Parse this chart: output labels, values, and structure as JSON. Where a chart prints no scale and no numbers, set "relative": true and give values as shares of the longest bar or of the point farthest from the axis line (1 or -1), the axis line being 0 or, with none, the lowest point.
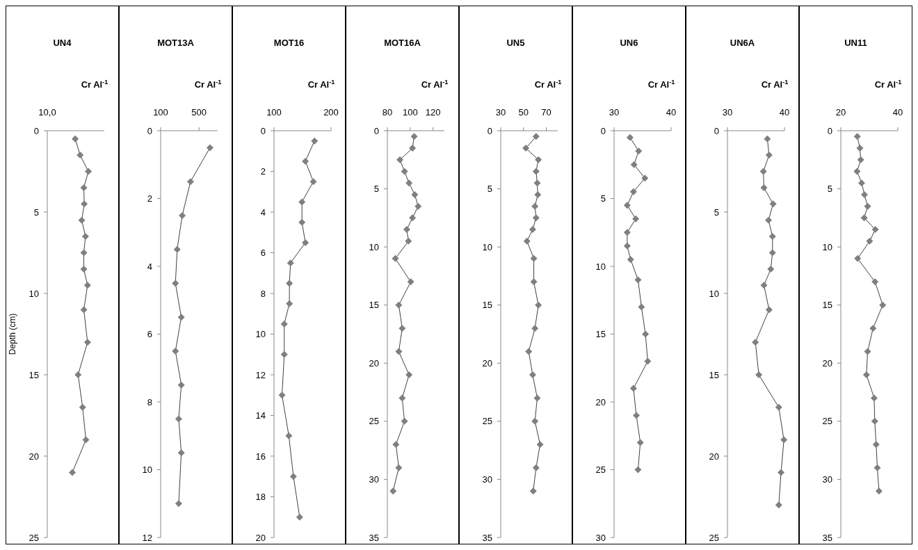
{
  "chart_data": [
    {
      "type": "line",
      "orientation": "horizontal",
      "title": "UN4",
      "xlabel": "Cr Al$^{-1}$",
      "ylabel": "Depth (cm)",
      "relative": true,
      "marker": "diamond",
      "annotations": [
        "10,0"
      ],
      "ylim": [
        25,
        0
      ],
      "yticks": [
        0,
        5,
        10,
        15,
        20,
        25
      ],
      "series": [
        {
          "color": "#7f7f7f",
          "values": [
            0.68,
            0.8,
            1.0,
            0.89,
            0.9,
            0.84,
            0.93,
            0.89,
            0.89,
            0.98,
            0.89,
            0.98,
            0.75,
            0.86,
            0.94,
            0.61
          ],
          "x": [
            0.5,
            1.5,
            2.5,
            3.5,
            4.5,
            5.5,
            6.5,
            7.5,
            8.5,
            9.5,
            11,
            13,
            15,
            17,
            19,
            21
          ]
        }
      ]
    },
    {
      "type": "line",
      "orientation": "horizontal",
      "title": "MOT13A",
      "xlabel": "Cr Al$^{-1}$",
      "marker": "diamond",
      "xlim": [
        100,
        694
      ],
      "xticks": [
        100,
        500
      ],
      "ylim": [
        12,
        0
      ],
      "yticks": [
        0,
        2,
        4,
        6,
        8,
        10,
        12
      ],
      "series": [
        {
          "color": "#7f7f7f",
          "values": [
            614,
            411,
            325,
            272,
            254,
            315,
            254,
            315,
            288,
            315,
            288
          ],
          "x": [
            0.5,
            1.5,
            2.5,
            3.5,
            4.5,
            5.5,
            6.5,
            7.5,
            8.5,
            9.5,
            11
          ]
        }
      ]
    },
    {
      "type": "line",
      "orientation": "horizontal",
      "title": "MOT16",
      "xlabel": "Cr Al$^{-1}$",
      "marker": "diamond",
      "xlim": [
        100,
        200
      ],
      "xticks": [
        100,
        200
      ],
      "ylim": [
        20,
        0
      ],
      "yticks": [
        0,
        2,
        4,
        6,
        8,
        10,
        12,
        14,
        16,
        18,
        20
      ],
      "series": [
        {
          "color": "#7f7f7f",
          "values": [
            171,
            155,
            169,
            149,
            149,
            155,
            129,
            127,
            127,
            118,
            118,
            114,
            126,
            134,
            145
          ],
          "x": [
            0.5,
            1.5,
            2.5,
            3.5,
            4.5,
            5.5,
            6.5,
            7.5,
            8.5,
            9.5,
            11,
            13,
            15,
            17,
            19
          ]
        }
      ]
    },
    {
      "type": "line",
      "orientation": "horizontal",
      "title": "MOT16A",
      "xlabel": "Cr Al$^{-1}$",
      "marker": "diamond",
      "xlim": [
        80,
        130
      ],
      "xticks": [
        80,
        100,
        120
      ],
      "ylim": [
        35,
        0
      ],
      "yticks": [
        0,
        5,
        10,
        15,
        20,
        25,
        30,
        35
      ],
      "series": [
        {
          "color": "#7f7f7f",
          "values": [
            103.5,
            102,
            91,
            95,
            99,
            104,
            107,
            102,
            97,
            98.5,
            87,
            100.5,
            90,
            93,
            90,
            99,
            93,
            95,
            87.5,
            90,
            85
          ],
          "x": [
            0.5,
            1.5,
            2.5,
            3.5,
            4.5,
            5.5,
            6.5,
            7.5,
            8.5,
            9.5,
            11,
            13,
            15,
            17,
            19,
            21,
            23,
            25,
            27,
            29,
            31
          ]
        }
      ]
    },
    {
      "type": "line",
      "orientation": "horizontal",
      "title": "UN5",
      "xlabel": "Cr Al$^{-1}$",
      "marker": "diamond",
      "xlim": [
        30,
        80
      ],
      "xticks": [
        30,
        50,
        70
      ],
      "ylim": [
        35,
        0
      ],
      "yticks": [
        0,
        5,
        10,
        15,
        20,
        25,
        30,
        35
      ],
      "series": [
        {
          "color": "#7f7f7f",
          "values": [
            61,
            52,
            63,
            61,
            62,
            62.5,
            60,
            61,
            58,
            53,
            59,
            59,
            63,
            60,
            54.5,
            58,
            62,
            60,
            64.5,
            61,
            58.5
          ],
          "x": [
            0.5,
            1.5,
            2.5,
            3.5,
            4.5,
            5.5,
            6.5,
            7.5,
            8.5,
            9.5,
            11,
            13,
            15,
            17,
            19,
            21,
            23,
            25,
            27,
            29,
            31
          ]
        }
      ]
    },
    {
      "type": "line",
      "orientation": "horizontal",
      "title": "UN6",
      "xlabel": "Cr Al$^{-1}$",
      "marker": "diamond",
      "xlim": [
        30,
        40
      ],
      "xticks": [
        30,
        40
      ],
      "ylim": [
        30,
        0
      ],
      "yticks": [
        0,
        5,
        10,
        15,
        20,
        25,
        30
      ],
      "series": [
        {
          "color": "#7f7f7f",
          "values": [
            32.8,
            34.3,
            33.5,
            35.4,
            33.4,
            32.3,
            33.8,
            32.3,
            32.3,
            32.9,
            34.2,
            34.8,
            35.5,
            35.9,
            33.4,
            33.9,
            34.6,
            34.2
          ],
          "x": [
            0.5,
            1.5,
            2.5,
            3.5,
            4.5,
            5.5,
            6.5,
            7.5,
            8.5,
            9.5,
            11,
            13,
            15,
            17,
            19,
            21,
            23,
            25
          ]
        }
      ]
    },
    {
      "type": "line",
      "orientation": "horizontal",
      "title": "UN6A",
      "xlabel": "Cr Al$^{-1}$",
      "marker": "diamond",
      "xlim": [
        30,
        40
      ],
      "xticks": [
        30,
        40
      ],
      "ylim": [
        25,
        0
      ],
      "yticks": [
        0,
        5,
        10,
        15,
        20,
        25
      ],
      "series": [
        {
          "color": "#7f7f7f",
          "values": [
            37.0,
            37.3,
            36.3,
            36.4,
            38.0,
            37.2,
            37.9,
            37.9,
            37.6,
            36.4,
            37.3,
            34.9,
            35.5,
            39.0,
            39.9,
            39.4,
            39.0
          ],
          "x": [
            0.5,
            1.5,
            2.5,
            3.5,
            4.5,
            5.5,
            6.5,
            7.5,
            8.5,
            9.5,
            11,
            13,
            15,
            17,
            19,
            21,
            23
          ]
        }
      ]
    },
    {
      "type": "line",
      "orientation": "horizontal",
      "title": "UN11",
      "xlabel": "Cr Al$^{-1}$",
      "marker": "diamond",
      "xlim": [
        20,
        40
      ],
      "xticks": [
        20,
        40
      ],
      "ylim": [
        35,
        0
      ],
      "yticks": [
        0,
        5,
        10,
        15,
        20,
        25,
        30,
        35
      ],
      "series": [
        {
          "color": "#7f7f7f",
          "values": [
            25.8,
            26.7,
            27.0,
            25.7,
            27.3,
            28.3,
            29.4,
            28.2,
            32.1,
            30.1,
            25.9,
            32.0,
            34.7,
            31.3,
            29.4,
            29.0,
            31.7,
            31.9,
            32.4,
            32.8,
            33.4
          ],
          "x": [
            0.5,
            1.5,
            2.5,
            3.5,
            4.5,
            5.5,
            6.5,
            7.5,
            8.5,
            9.5,
            11,
            13,
            15,
            17,
            19,
            21,
            23,
            25,
            27,
            29,
            31
          ]
        }
      ]
    }
  ]
}
